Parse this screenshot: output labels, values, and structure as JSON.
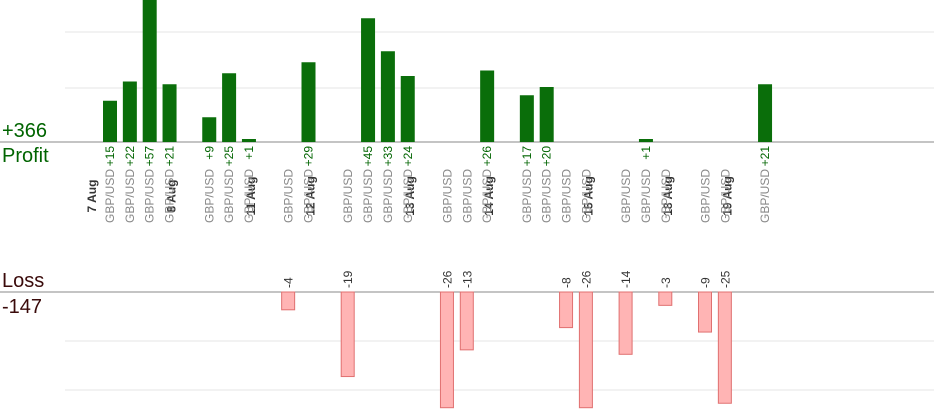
{
  "summary": {
    "profit_total": "+366",
    "profit_label": "Profit",
    "loss_label": "Loss",
    "loss_total": "-147"
  },
  "colors": {
    "profit_bar": "#0a6e0a",
    "profit_text": "#006400",
    "loss_bar": "#ffb4b4",
    "loss_border": "#e07070",
    "loss_text": "#333333",
    "pair_text": "#888888",
    "date_text": "#333333",
    "grid": "#e6e6e6",
    "axis": "#888888"
  },
  "chart_data": {
    "type": "bar",
    "pair": "GBP/USD",
    "days": [
      "7 Aug",
      "8 Aug",
      "11 Aug",
      "12 Aug",
      "13 Aug",
      "14 Aug",
      "15 Aug",
      "18 Aug",
      "19 Aug"
    ],
    "trades": [
      {
        "day": 0,
        "pair": "GBP/USD",
        "value": 15,
        "label": "+15"
      },
      {
        "day": 0,
        "pair": "GBP/USD",
        "value": 22,
        "label": "+22"
      },
      {
        "day": 0,
        "pair": "GBP/USD",
        "value": 57,
        "label": "+57"
      },
      {
        "day": 0,
        "pair": "GBP/USD",
        "value": 21,
        "label": "+21"
      },
      {
        "day": 1,
        "pair": "GBP/USD",
        "value": 9,
        "label": "+9"
      },
      {
        "day": 1,
        "pair": "GBP/USD",
        "value": 25,
        "label": "+25"
      },
      {
        "day": 1,
        "pair": "GBP/USD",
        "value": 1,
        "label": "+1"
      },
      {
        "day": 2,
        "pair": "GBP/USD",
        "value": -4,
        "label": "-4"
      },
      {
        "day": 2,
        "pair": "GBP/USD",
        "value": 29,
        "label": "+29"
      },
      {
        "day": 3,
        "pair": "GBP/USD",
        "value": -19,
        "label": "-19"
      },
      {
        "day": 3,
        "pair": "GBP/USD",
        "value": 45,
        "label": "+45"
      },
      {
        "day": 3,
        "pair": "GBP/USD",
        "value": 33,
        "label": "+33"
      },
      {
        "day": 3,
        "pair": "GBP/USD",
        "value": 24,
        "label": "+24"
      },
      {
        "day": 4,
        "pair": "GBP/USD",
        "value": -26,
        "label": "-26"
      },
      {
        "day": 4,
        "pair": "GBP/USD",
        "value": -13,
        "label": "-13"
      },
      {
        "day": 4,
        "pair": "GBP/USD",
        "value": 26,
        "label": "+26"
      },
      {
        "day": 5,
        "pair": "GBP/USD",
        "value": 17,
        "label": "+17"
      },
      {
        "day": 5,
        "pair": "GBP/USD",
        "value": 20,
        "label": "+20"
      },
      {
        "day": 5,
        "pair": "GBP/USD",
        "value": -8,
        "label": "-8"
      },
      {
        "day": 5,
        "pair": "GBP/USD",
        "value": -26,
        "label": "-26"
      },
      {
        "day": 6,
        "pair": "GBP/USD",
        "value": -14,
        "label": "-14"
      },
      {
        "day": 6,
        "pair": "GBP/USD",
        "value": 1,
        "label": "+1"
      },
      {
        "day": 6,
        "pair": "GBP/USD",
        "value": -3,
        "label": "-3"
      },
      {
        "day": 7,
        "pair": "GBP/USD",
        "value": -9,
        "label": "-9"
      },
      {
        "day": 7,
        "pair": "GBP/USD",
        "value": -25,
        "label": "-25"
      },
      {
        "day": 8,
        "pair": "GBP/USD",
        "value": 21,
        "label": "+21"
      }
    ]
  }
}
